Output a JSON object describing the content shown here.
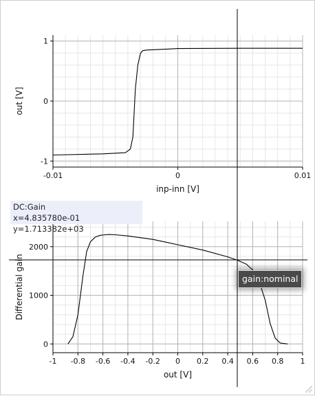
{
  "chart_data": [
    {
      "type": "line",
      "xlabel": "inp-inn [V]",
      "ylabel": "out [V]",
      "xlim": [
        -0.01,
        0.01
      ],
      "ylim": [
        -1.1,
        1.1
      ],
      "x_ticks": [
        -0.01,
        0,
        0.01
      ],
      "x_tick_labels": [
        "-0.01",
        "0",
        "0.01"
      ],
      "y_ticks": [
        -1,
        0,
        1
      ],
      "y_tick_labels": [
        "-1",
        "0",
        "1"
      ],
      "grid": true,
      "series": [
        {
          "x": [
            -0.01,
            -0.006,
            -0.0042,
            -0.0038,
            -0.0036,
            -0.0035,
            -0.0034,
            -0.0032,
            -0.003,
            -0.0029,
            -0.0028,
            -0.0025,
            -0.0015,
            0,
            0.005,
            0.01
          ],
          "y": [
            -0.9,
            -0.88,
            -0.86,
            -0.8,
            -0.6,
            -0.2,
            0.2,
            0.6,
            0.79,
            0.82,
            0.84,
            0.85,
            0.86,
            0.875,
            0.88,
            0.88
          ]
        }
      ]
    },
    {
      "type": "line",
      "title": "DC:Gain",
      "readout": "x=4.835780e-01 y=1.713382e+03",
      "xlabel": "out [V]",
      "ylabel": "Differential gain",
      "xlim": [
        -1,
        1
      ],
      "ylim": [
        -180,
        2520
      ],
      "x_ticks": [
        -1,
        -0.8,
        -0.6,
        -0.4,
        -0.2,
        0,
        0.2,
        0.4,
        0.6,
        0.8,
        1
      ],
      "x_tick_labels": [
        "-1",
        "-0.8",
        "-0.6",
        "-0.4",
        "-0.2",
        "0",
        "0.2",
        "0.4",
        "0.6",
        "0.8",
        "1"
      ],
      "y_ticks": [
        0,
        1000,
        2000
      ],
      "y_tick_labels": [
        "0",
        "1000",
        "2000"
      ],
      "grid": true,
      "tooltip": "gain:nominal",
      "series": [
        {
          "name": "gain:nominal",
          "x": [
            -0.88,
            -0.84,
            -0.8,
            -0.76,
            -0.73,
            -0.7,
            -0.66,
            -0.62,
            -0.58,
            -0.55,
            -0.5,
            -0.4,
            -0.2,
            0,
            0.2,
            0.4,
            0.48,
            0.55,
            0.6,
            0.65,
            0.7,
            0.74,
            0.78,
            0.82,
            0.88
          ],
          "y": [
            0,
            150,
            600,
            1400,
            1900,
            2100,
            2200,
            2235,
            2245,
            2250,
            2245,
            2220,
            2150,
            2040,
            1930,
            1790,
            1720,
            1640,
            1520,
            1300,
            900,
            420,
            120,
            20,
            0
          ]
        }
      ]
    }
  ]
}
